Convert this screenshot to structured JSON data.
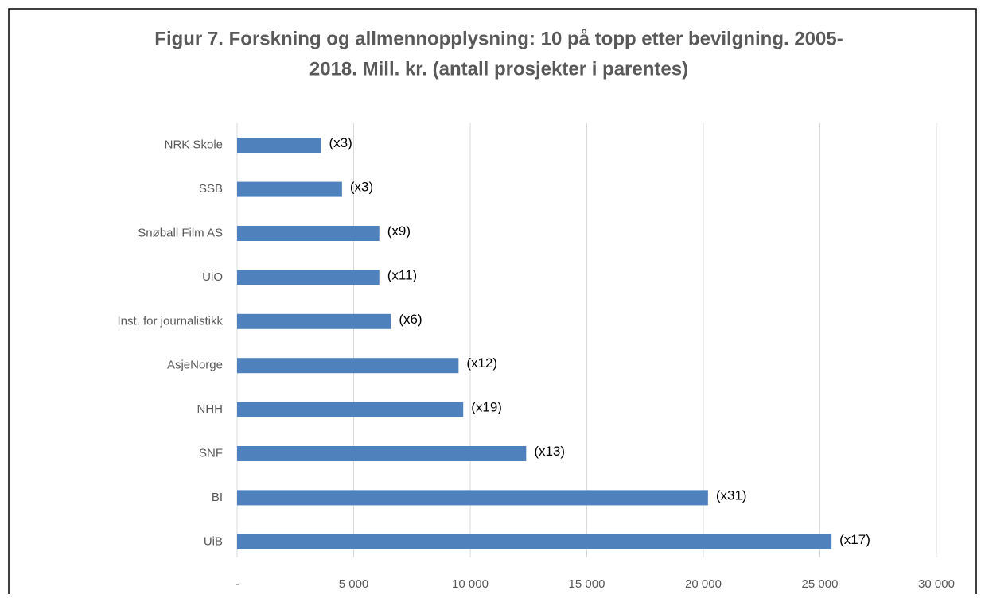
{
  "chart_data": {
    "type": "barh",
    "title": [
      "Figur 7. Forskning og allmennopplysning: 10 på topp etter bevilgning. 2005-",
      "2018. Mill. kr. (antall prosjekter i parentes)"
    ],
    "categories": [
      "NRK Skole",
      "SSB",
      "Snøball Film AS",
      "UiO",
      "Inst. for journalistikk",
      "AsjeNorge",
      "NHH",
      "SNF",
      "BI",
      "UiB"
    ],
    "values": [
      3600,
      4500,
      6100,
      6100,
      6600,
      9500,
      9700,
      12400,
      20200,
      25500
    ],
    "labels": [
      "(x3)",
      "(x3)",
      "(x9)",
      "(x11)",
      "(x6)",
      "(x12)",
      "(x19)",
      "(x13)",
      "(x31)",
      "(x17)"
    ],
    "color": "#4f81bd",
    "xlim": [
      0,
      30000
    ],
    "xticks": [
      {
        "value": 0,
        "label": "-"
      },
      {
        "value": 5000,
        "label": "5 000"
      },
      {
        "value": 10000,
        "label": "10 000"
      },
      {
        "value": 15000,
        "label": "15 000"
      },
      {
        "value": 20000,
        "label": "20 000"
      },
      {
        "value": 25000,
        "label": "25 000"
      },
      {
        "value": 30000,
        "label": "30 000"
      }
    ],
    "grid": true
  }
}
